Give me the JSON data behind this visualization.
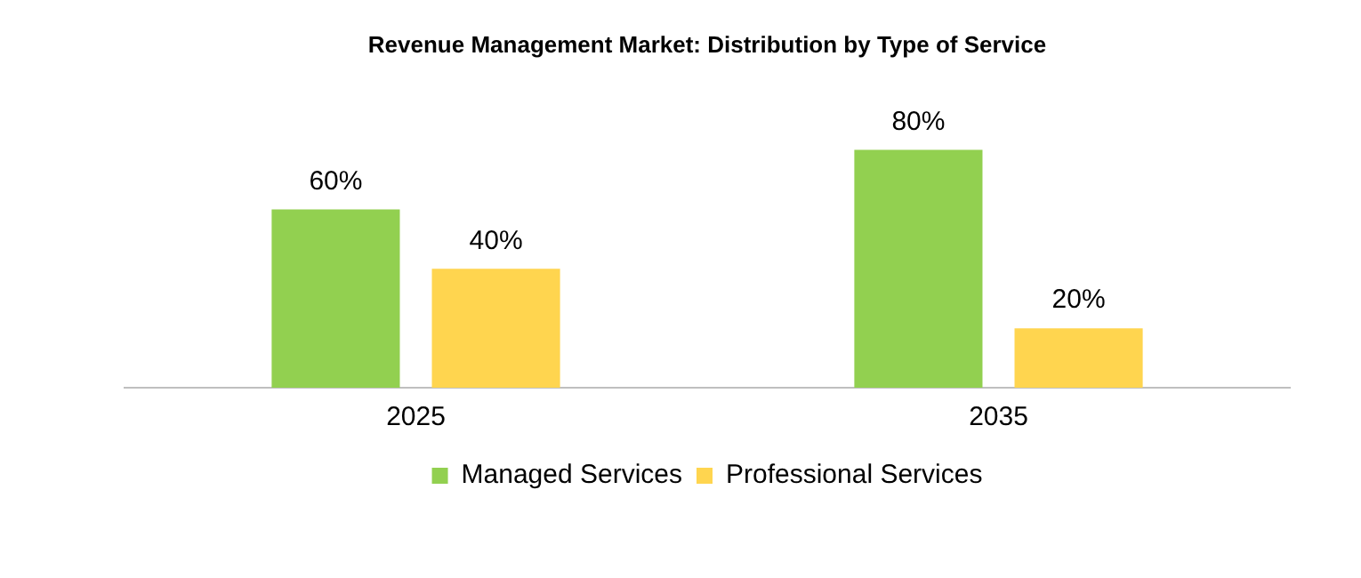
{
  "chart_data": {
    "type": "bar",
    "title": "Revenue Management Market: Distribution by Type of Service",
    "categories": [
      "2025",
      "2035"
    ],
    "series": [
      {
        "name": "Managed Services",
        "color": "#92d050",
        "values": [
          60,
          80
        ],
        "value_labels": [
          "60%",
          "80%"
        ]
      },
      {
        "name": "Professional Services",
        "color": "#ffd54f",
        "values": [
          40,
          20
        ],
        "value_labels": [
          "40%",
          "20%"
        ]
      }
    ],
    "legend": "bottom",
    "grid": false
  }
}
